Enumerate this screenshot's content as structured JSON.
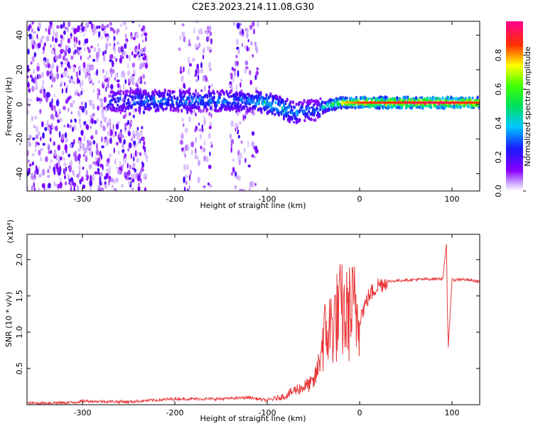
{
  "title": "C2E3.2023.214.11.08.G30",
  "chart_data": [
    {
      "type": "heatmap",
      "xlabel": "Height of straight line (km)",
      "ylabel": "Frequency (Hz)",
      "xlim": [
        -360,
        130
      ],
      "ylim": [
        -50,
        48
      ],
      "xticks": [
        -300,
        -200,
        -100,
        0,
        100
      ],
      "yticks": [
        -40,
        -20,
        0,
        20,
        40
      ],
      "grid": false,
      "colorbar": {
        "label": "Normalized spectral amplitude",
        "range": [
          0.0,
          1.0
        ],
        "ticks": [
          0.0,
          0.2,
          0.4,
          0.6,
          0.8
        ],
        "colormap": "rainbow (purple-blue-cyan-green-yellow-red-magenta)"
      },
      "ridge": {
        "x": [
          -270,
          -240,
          -200,
          -160,
          -120,
          -100,
          -85,
          -70,
          -60,
          -45,
          -40,
          -30,
          -20,
          0,
          50,
          90,
          100,
          130
        ],
        "frequency": [
          2,
          2,
          2,
          2,
          2,
          1,
          -2,
          -5,
          -4,
          -3,
          -2,
          0,
          1,
          1,
          1,
          1,
          1,
          1
        ],
        "amplitude": [
          0.3,
          0.35,
          0.35,
          0.35,
          0.35,
          0.45,
          0.45,
          0.4,
          0.35,
          0.3,
          0.45,
          0.6,
          0.75,
          0.85,
          0.9,
          0.95,
          0.9,
          0.85
        ]
      },
      "noise_bands_x": [
        [
          -360,
          -230
        ],
        [
          -195,
          -160
        ],
        [
          -140,
          -110
        ]
      ]
    },
    {
      "type": "line",
      "xlabel": "Height of straight line (km)",
      "ylabel": "SNR (10 * v/v)",
      "y_multiplier": "(x10⁴)",
      "xlim": [
        -360,
        130
      ],
      "ylim": [
        0,
        2.35
      ],
      "xticks": [
        -300,
        -200,
        -100,
        0,
        100
      ],
      "yticks": [
        0.5,
        1.0,
        1.5,
        2.0
      ],
      "grid": false,
      "series": [
        {
          "color": "#e8383a",
          "x": [
            -360,
            -310,
            -300,
            -250,
            -200,
            -150,
            -120,
            -100,
            -80,
            -70,
            -60,
            -50,
            -45,
            -40,
            -35,
            -30,
            -25,
            -20,
            -15,
            -10,
            -5,
            0,
            10,
            20,
            30,
            50,
            70,
            90,
            94,
            95,
            96,
            100,
            110,
            130
          ],
          "y": [
            0.02,
            0.03,
            0.05,
            0.04,
            0.08,
            0.08,
            0.1,
            0.06,
            0.12,
            0.2,
            0.25,
            0.3,
            0.5,
            0.9,
            1.0,
            1.1,
            1.2,
            1.3,
            1.2,
            1.3,
            1.3,
            1.2,
            1.5,
            1.65,
            1.7,
            1.72,
            1.73,
            1.74,
            2.2,
            1.35,
            0.8,
            1.72,
            1.73,
            1.7
          ]
        }
      ]
    }
  ]
}
